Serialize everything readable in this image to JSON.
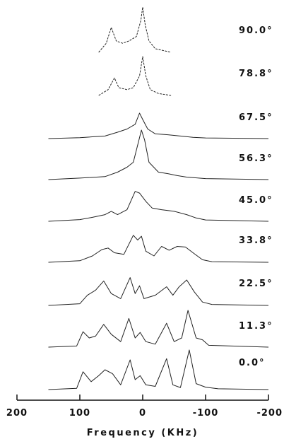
{
  "chart_data": {
    "type": "line",
    "title": "",
    "xlabel": "Frequency (KHz)",
    "ylabel": "",
    "xlim": [
      200,
      -200
    ],
    "x_reversed": true,
    "x_ticks": [
      200,
      100,
      0,
      -100,
      -200
    ],
    "x_tick_labels": [
      "200",
      "100",
      "0",
      "-100",
      "-200"
    ],
    "grid": false,
    "legend": "none",
    "series": [
      {
        "name": "0.0°",
        "points": [
          [
            150,
            0
          ],
          [
            105,
            0.03
          ],
          [
            95,
            0.45
          ],
          [
            82,
            0.2
          ],
          [
            70,
            0.35
          ],
          [
            60,
            0.5
          ],
          [
            48,
            0.4
          ],
          [
            35,
            0.12
          ],
          [
            20,
            0.75
          ],
          [
            12,
            0.25
          ],
          [
            4,
            0.35
          ],
          [
            -5,
            0.12
          ],
          [
            -20,
            0.08
          ],
          [
            -38,
            0.78
          ],
          [
            -48,
            0.12
          ],
          [
            -60,
            0.05
          ],
          [
            -74,
            1.0
          ],
          [
            -85,
            0.15
          ],
          [
            -100,
            0.06
          ],
          [
            -120,
            0.02
          ],
          [
            -200,
            0.0
          ]
        ]
      },
      {
        "name": "11.3°",
        "points": [
          [
            150,
            0
          ],
          [
            105,
            0.03
          ],
          [
            95,
            0.42
          ],
          [
            85,
            0.25
          ],
          [
            75,
            0.3
          ],
          [
            62,
            0.62
          ],
          [
            50,
            0.35
          ],
          [
            35,
            0.15
          ],
          [
            22,
            0.78
          ],
          [
            12,
            0.25
          ],
          [
            4,
            0.4
          ],
          [
            -5,
            0.15
          ],
          [
            -20,
            0.08
          ],
          [
            -38,
            0.65
          ],
          [
            -50,
            0.15
          ],
          [
            -62,
            0.25
          ],
          [
            -72,
            1.0
          ],
          [
            -85,
            0.25
          ],
          [
            -95,
            0.2
          ],
          [
            -105,
            0.05
          ],
          [
            -200,
            0.0
          ]
        ]
      },
      {
        "name": "22.5°",
        "points": [
          [
            150,
            0
          ],
          [
            100,
            0.05
          ],
          [
            88,
            0.3
          ],
          [
            75,
            0.45
          ],
          [
            62,
            0.72
          ],
          [
            50,
            0.35
          ],
          [
            35,
            0.2
          ],
          [
            20,
            0.82
          ],
          [
            12,
            0.35
          ],
          [
            5,
            0.58
          ],
          [
            -2,
            0.2
          ],
          [
            -20,
            0.3
          ],
          [
            -38,
            0.55
          ],
          [
            -48,
            0.3
          ],
          [
            -58,
            0.55
          ],
          [
            -70,
            0.75
          ],
          [
            -82,
            0.4
          ],
          [
            -95,
            0.1
          ],
          [
            -110,
            0.03
          ],
          [
            -200,
            0.0
          ]
        ]
      },
      {
        "name": "33.8°",
        "points": [
          [
            150,
            0
          ],
          [
            100,
            0.05
          ],
          [
            80,
            0.2
          ],
          [
            65,
            0.4
          ],
          [
            55,
            0.45
          ],
          [
            45,
            0.3
          ],
          [
            30,
            0.25
          ],
          [
            15,
            0.85
          ],
          [
            8,
            0.7
          ],
          [
            2,
            0.82
          ],
          [
            -5,
            0.35
          ],
          [
            -18,
            0.2
          ],
          [
            -30,
            0.5
          ],
          [
            -42,
            0.38
          ],
          [
            -55,
            0.5
          ],
          [
            -68,
            0.48
          ],
          [
            -80,
            0.3
          ],
          [
            -95,
            0.08
          ],
          [
            -110,
            0.02
          ],
          [
            -200,
            0.0
          ]
        ]
      },
      {
        "name": "45.0°",
        "points": [
          [
            150,
            0
          ],
          [
            100,
            0.05
          ],
          [
            80,
            0.12
          ],
          [
            60,
            0.2
          ],
          [
            50,
            0.3
          ],
          [
            40,
            0.2
          ],
          [
            25,
            0.35
          ],
          [
            12,
            0.9
          ],
          [
            5,
            0.85
          ],
          [
            -5,
            0.6
          ],
          [
            -15,
            0.4
          ],
          [
            -30,
            0.35
          ],
          [
            -50,
            0.3
          ],
          [
            -70,
            0.2
          ],
          [
            -85,
            0.1
          ],
          [
            -100,
            0.04
          ],
          [
            -200,
            0.0
          ]
        ]
      },
      {
        "name": "56.3°",
        "points": [
          [
            150,
            0
          ],
          [
            100,
            0.03
          ],
          [
            60,
            0.06
          ],
          [
            40,
            0.15
          ],
          [
            25,
            0.25
          ],
          [
            15,
            0.35
          ],
          [
            7,
            0.75
          ],
          [
            2,
            1.0
          ],
          [
            -3,
            0.8
          ],
          [
            -10,
            0.35
          ],
          [
            -25,
            0.15
          ],
          [
            -40,
            0.12
          ],
          [
            -55,
            0.08
          ],
          [
            -70,
            0.05
          ],
          [
            -100,
            0.02
          ],
          [
            -200,
            0.0
          ]
        ]
      },
      {
        "name": "67.5°",
        "points": [
          [
            150,
            0
          ],
          [
            100,
            0.03
          ],
          [
            60,
            0.08
          ],
          [
            40,
            0.2
          ],
          [
            25,
            0.3
          ],
          [
            12,
            0.45
          ],
          [
            5,
            0.8
          ],
          [
            0,
            0.6
          ],
          [
            -8,
            0.3
          ],
          [
            -20,
            0.15
          ],
          [
            -40,
            0.12
          ],
          [
            -60,
            0.08
          ],
          [
            -80,
            0.04
          ],
          [
            -100,
            0.02
          ],
          [
            -200,
            0.0
          ]
        ]
      },
      {
        "name": "78.8°",
        "points": [
          [
            70,
            0
          ],
          [
            55,
            0.15
          ],
          [
            45,
            0.45
          ],
          [
            38,
            0.2
          ],
          [
            25,
            0.15
          ],
          [
            15,
            0.2
          ],
          [
            5,
            0.5
          ],
          [
            0,
            1.0
          ],
          [
            -5,
            0.5
          ],
          [
            -12,
            0.15
          ],
          [
            -25,
            0.05
          ],
          [
            -45,
            0.0
          ]
        ]
      },
      {
        "name": "90.0°",
        "points": [
          [
            70,
            0
          ],
          [
            58,
            0.2
          ],
          [
            50,
            0.55
          ],
          [
            42,
            0.25
          ],
          [
            32,
            0.2
          ],
          [
            22,
            0.25
          ],
          [
            10,
            0.35
          ],
          [
            3,
            0.7
          ],
          [
            0,
            1.0
          ],
          [
            -4,
            0.6
          ],
          [
            -10,
            0.25
          ],
          [
            -20,
            0.08
          ],
          [
            -45,
            0.0
          ]
        ]
      }
    ]
  }
}
